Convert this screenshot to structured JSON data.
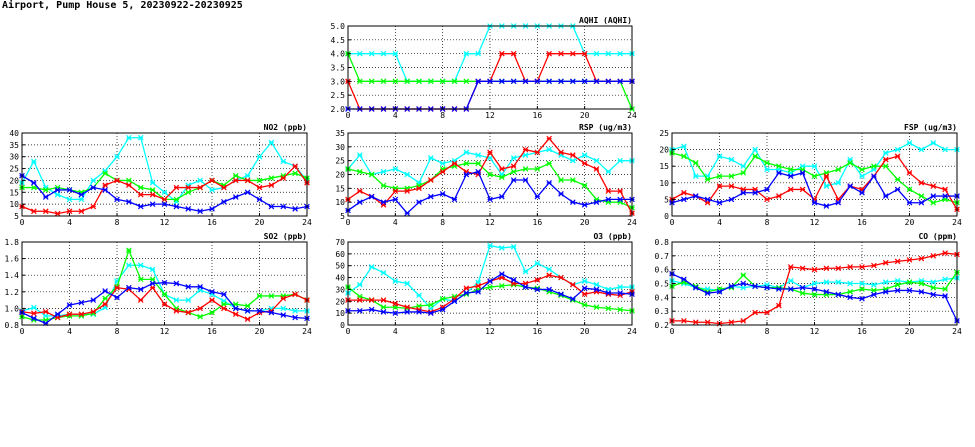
{
  "page": {
    "title": "Airport, Pump House 5, 20230922-20230925"
  },
  "chart_data": [
    {
      "id": "aqhi",
      "type": "line",
      "title": "AQHI (AQHI)",
      "xlim": [
        0,
        24
      ],
      "ylim": [
        2.0,
        5.0
      ],
      "xticks": [
        0,
        4,
        8,
        12,
        16,
        20,
        24
      ],
      "yticks": [
        2.0,
        2.5,
        3.0,
        3.5,
        4.0,
        4.5,
        5.0
      ],
      "ytick_format": "fixed1",
      "grid": true,
      "x": [
        0,
        1,
        2,
        3,
        4,
        5,
        6,
        7,
        8,
        9,
        10,
        11,
        12,
        13,
        14,
        15,
        16,
        17,
        18,
        19,
        20,
        21,
        22,
        23,
        24
      ],
      "series": [
        {
          "color": "#00ffff",
          "values": [
            4,
            4,
            4,
            4,
            4,
            3,
            3,
            3,
            3,
            3,
            4,
            4,
            5,
            5,
            5,
            5,
            5,
            5,
            5,
            5,
            4,
            4,
            4,
            4,
            4
          ]
        },
        {
          "color": "#00ff00",
          "values": [
            4,
            3,
            3,
            3,
            3,
            3,
            3,
            3,
            3,
            3,
            3,
            3,
            3,
            3,
            3,
            3,
            3,
            3,
            3,
            3,
            3,
            3,
            3,
            3,
            2
          ]
        },
        {
          "color": "#ff0000",
          "values": [
            3,
            2,
            2,
            2,
            2,
            2,
            2,
            2,
            2,
            2,
            2,
            3,
            3,
            4,
            4,
            3,
            3,
            4,
            4,
            4,
            4,
            3,
            3,
            3,
            3
          ]
        },
        {
          "color": "#0000ff",
          "values": [
            2,
            2,
            2,
            2,
            2,
            2,
            2,
            2,
            2,
            2,
            2,
            3,
            3,
            3,
            3,
            3,
            3,
            3,
            3,
            3,
            3,
            3,
            3,
            3,
            3
          ]
        }
      ]
    },
    {
      "id": "no2",
      "type": "line",
      "title": "NO2 (ppb)",
      "xlim": [
        0,
        24
      ],
      "ylim": [
        5,
        40
      ],
      "xticks": [
        0,
        4,
        8,
        12,
        16,
        20,
        24
      ],
      "yticks": [
        5,
        10,
        15,
        20,
        25,
        30,
        35,
        40
      ],
      "ytick_format": "int",
      "grid": true,
      "x": [
        0,
        1,
        2,
        3,
        4,
        5,
        6,
        7,
        8,
        9,
        10,
        11,
        12,
        13,
        14,
        15,
        16,
        17,
        18,
        19,
        20,
        21,
        22,
        23,
        24
      ],
      "series": [
        {
          "color": "#00ffff",
          "values": [
            19,
            28,
            17,
            14,
            12,
            12,
            20,
            24,
            30,
            38,
            38,
            19,
            15,
            11,
            18,
            20,
            16,
            17,
            20,
            22,
            30,
            36,
            28,
            26,
            20
          ]
        },
        {
          "color": "#00ff00",
          "values": [
            17,
            17,
            16,
            17,
            16,
            15,
            17,
            23,
            20,
            20,
            17,
            16,
            12,
            12,
            15,
            17,
            20,
            18,
            22,
            20,
            20,
            21,
            22,
            23,
            21
          ]
        },
        {
          "color": "#ff0000",
          "values": [
            9,
            7,
            7,
            6,
            7,
            7,
            9,
            18,
            20,
            18,
            14,
            14,
            12,
            17,
            17,
            17,
            20,
            17,
            20,
            20,
            17,
            18,
            21,
            26,
            19
          ]
        },
        {
          "color": "#0000ff",
          "values": [
            22,
            19,
            13,
            16,
            16,
            14,
            17,
            16,
            12,
            11,
            9,
            10,
            10,
            9,
            8,
            7,
            8,
            11,
            13,
            15,
            12,
            9,
            9,
            8,
            9
          ]
        }
      ]
    },
    {
      "id": "rsp",
      "type": "line",
      "title": "RSP (ug/m3)",
      "xlim": [
        0,
        24
      ],
      "ylim": [
        5,
        35
      ],
      "xticks": [
        0,
        4,
        8,
        12,
        16,
        20,
        24
      ],
      "yticks": [
        5,
        10,
        15,
        20,
        25,
        30,
        35
      ],
      "ytick_format": "int",
      "grid": true,
      "x": [
        0,
        1,
        2,
        3,
        4,
        5,
        6,
        7,
        8,
        9,
        10,
        11,
        12,
        13,
        14,
        15,
        16,
        17,
        18,
        19,
        20,
        21,
        22,
        23,
        24
      ],
      "series": [
        {
          "color": "#00ffff",
          "values": [
            22,
            27,
            20,
            21,
            22,
            20,
            17,
            26,
            24,
            25,
            28,
            27,
            26,
            20,
            26,
            27,
            28,
            29,
            27,
            25,
            27,
            25,
            21,
            25,
            25
          ]
        },
        {
          "color": "#00ff00",
          "values": [
            22,
            21,
            20,
            16,
            15,
            15,
            16,
            18,
            22,
            23,
            24,
            24,
            20,
            19,
            21,
            22,
            22,
            24,
            18,
            18,
            16,
            11,
            10,
            10,
            8
          ]
        },
        {
          "color": "#ff0000",
          "values": [
            11,
            14,
            12,
            9,
            14,
            14,
            15,
            18,
            21,
            24,
            21,
            20,
            28,
            22,
            23,
            29,
            28,
            33,
            28,
            27,
            24,
            22,
            14,
            14,
            6
          ]
        },
        {
          "color": "#0000ff",
          "values": [
            7,
            10,
            12,
            10,
            11,
            6,
            10,
            12,
            13,
            11,
            20,
            21,
            11,
            12,
            18,
            18,
            12,
            17,
            13,
            10,
            9,
            10,
            11,
            11,
            11
          ]
        }
      ]
    },
    {
      "id": "fsp",
      "type": "line",
      "title": "FSP (ug/m3)",
      "xlim": [
        0,
        24
      ],
      "ylim": [
        0,
        25
      ],
      "xticks": [
        0,
        4,
        8,
        12,
        16,
        20,
        24
      ],
      "yticks": [
        0,
        5,
        10,
        15,
        20,
        25
      ],
      "ytick_format": "int",
      "grid": true,
      "x": [
        0,
        1,
        2,
        3,
        4,
        5,
        6,
        7,
        8,
        9,
        10,
        11,
        12,
        13,
        14,
        15,
        16,
        17,
        18,
        19,
        20,
        21,
        22,
        23,
        24
      ],
      "series": [
        {
          "color": "#00ffff",
          "values": [
            20,
            21,
            12,
            12,
            18,
            17,
            15,
            20,
            14,
            14,
            13,
            15,
            15,
            9,
            10,
            17,
            12,
            14,
            19,
            20,
            22,
            20,
            22,
            20,
            20
          ]
        },
        {
          "color": "#00ff00",
          "values": [
            19,
            18,
            16,
            11,
            12,
            12,
            13,
            18,
            16,
            15,
            14,
            14,
            12,
            13,
            14,
            16,
            14,
            15,
            15,
            11,
            8,
            6,
            4,
            5,
            4
          ]
        },
        {
          "color": "#ff0000",
          "values": [
            5,
            7,
            6,
            4,
            9,
            9,
            8,
            8,
            5,
            6,
            8,
            8,
            5,
            12,
            5,
            9,
            8,
            12,
            17,
            18,
            13,
            10,
            9,
            8,
            2
          ]
        },
        {
          "color": "#0000ff",
          "values": [
            4,
            5,
            6,
            5,
            4,
            5,
            7,
            7,
            8,
            13,
            12,
            13,
            4,
            3,
            4,
            9,
            7,
            12,
            6,
            8,
            4,
            4,
            6,
            6,
            6
          ]
        }
      ]
    },
    {
      "id": "so2",
      "type": "line",
      "title": "SO2 (ppb)",
      "xlim": [
        0,
        24
      ],
      "ylim": [
        0.8,
        1.8
      ],
      "xticks": [
        0,
        4,
        8,
        12,
        16,
        20,
        24
      ],
      "yticks": [
        0.8,
        1.0,
        1.2,
        1.4,
        1.6,
        1.8
      ],
      "ytick_format": "fixed1",
      "grid": true,
      "x": [
        0,
        1,
        2,
        3,
        4,
        5,
        6,
        7,
        8,
        9,
        10,
        11,
        12,
        13,
        14,
        15,
        16,
        17,
        18,
        19,
        20,
        21,
        22,
        23,
        24
      ],
      "series": [
        {
          "color": "#00ffff",
          "values": [
            0.97,
            1.01,
            0.91,
            0.91,
            0.93,
            0.93,
            0.93,
            1.01,
            1.33,
            1.52,
            1.52,
            1.47,
            1.17,
            1.1,
            1.1,
            1.22,
            1.17,
            1.09,
            1.0,
            0.97,
            0.97,
            1.0,
            1.0,
            0.97,
            0.97
          ]
        },
        {
          "color": "#00ff00",
          "values": [
            0.9,
            0.86,
            0.86,
            0.89,
            0.91,
            0.91,
            0.94,
            1.12,
            1.26,
            1.7,
            1.35,
            1.35,
            1.17,
            1.0,
            0.95,
            0.9,
            0.95,
            1.05,
            1.05,
            1.03,
            1.15,
            1.15,
            1.15,
            1.17,
            1.1
          ]
        },
        {
          "color": "#ff0000",
          "values": [
            0.96,
            0.94,
            0.96,
            0.89,
            0.93,
            0.93,
            0.96,
            1.05,
            1.25,
            1.23,
            1.1,
            1.25,
            1.05,
            0.97,
            0.95,
            1.0,
            1.1,
            1.0,
            0.93,
            0.87,
            0.95,
            0.97,
            1.12,
            1.17,
            1.1
          ]
        },
        {
          "color": "#0000ff",
          "values": [
            0.95,
            0.88,
            0.82,
            0.93,
            1.04,
            1.07,
            1.1,
            1.21,
            1.13,
            1.25,
            1.23,
            1.3,
            1.31,
            1.3,
            1.26,
            1.26,
            1.2,
            1.17,
            1.0,
            0.97,
            0.97,
            0.95,
            0.92,
            0.89,
            0.88
          ]
        }
      ]
    },
    {
      "id": "o3",
      "type": "line",
      "title": "O3 (ppb)",
      "xlim": [
        0,
        24
      ],
      "ylim": [
        0,
        70
      ],
      "xticks": [
        0,
        4,
        8,
        12,
        16,
        20,
        24
      ],
      "yticks": [
        0,
        10,
        20,
        30,
        40,
        50,
        60,
        70
      ],
      "ytick_format": "int",
      "grid": true,
      "x": [
        0,
        1,
        2,
        3,
        4,
        5,
        6,
        7,
        8,
        9,
        10,
        11,
        12,
        13,
        14,
        15,
        16,
        17,
        18,
        19,
        20,
        21,
        22,
        23,
        24
      ],
      "series": [
        {
          "color": "#00ffff",
          "values": [
            27,
            34,
            49,
            44,
            37,
            35,
            25,
            14,
            22,
            20,
            27,
            36,
            67,
            65,
            66,
            45,
            52,
            47,
            40,
            34,
            37,
            34,
            30,
            32,
            32
          ]
        },
        {
          "color": "#00ff00",
          "values": [
            32,
            24,
            21,
            15,
            15,
            14,
            16,
            17,
            22,
            24,
            26,
            30,
            32,
            33,
            34,
            32,
            31,
            28,
            25,
            21,
            17,
            15,
            14,
            13,
            12
          ]
        },
        {
          "color": "#ff0000",
          "values": [
            21,
            21,
            21,
            21,
            18,
            15,
            13,
            11,
            15,
            22,
            31,
            33,
            37,
            40,
            35,
            35,
            38,
            42,
            40,
            34,
            26,
            28,
            26,
            25,
            28
          ]
        },
        {
          "color": "#0000ff",
          "values": [
            12,
            12,
            13,
            11,
            10,
            11,
            11,
            10,
            13,
            20,
            27,
            28,
            37,
            43,
            38,
            32,
            30,
            30,
            26,
            22,
            31,
            30,
            27,
            27,
            26
          ]
        }
      ]
    },
    {
      "id": "co",
      "type": "line",
      "title": "CO (ppm)",
      "xlim": [
        0,
        24
      ],
      "ylim": [
        0.2,
        0.8
      ],
      "xticks": [
        0,
        4,
        8,
        12,
        16,
        20,
        24
      ],
      "yticks": [
        0.2,
        0.3,
        0.4,
        0.5,
        0.6,
        0.7,
        0.8
      ],
      "ytick_format": "fixed1",
      "grid": true,
      "x": [
        0,
        1,
        2,
        3,
        4,
        5,
        6,
        7,
        8,
        9,
        10,
        11,
        12,
        13,
        14,
        15,
        16,
        17,
        18,
        19,
        20,
        21,
        22,
        23,
        24
      ],
      "series": [
        {
          "color": "#00ffff",
          "values": [
            0.52,
            0.5,
            0.47,
            0.46,
            0.45,
            0.48,
            0.47,
            0.48,
            0.49,
            0.47,
            0.52,
            0.47,
            0.5,
            0.51,
            0.51,
            0.5,
            0.5,
            0.49,
            0.51,
            0.52,
            0.51,
            0.52,
            0.51,
            0.53,
            0.54
          ]
        },
        {
          "color": "#00ff00",
          "values": [
            0.48,
            0.51,
            0.48,
            0.44,
            0.46,
            0.47,
            0.56,
            0.48,
            0.47,
            0.47,
            0.46,
            0.43,
            0.42,
            0.42,
            0.42,
            0.44,
            0.46,
            0.45,
            0.46,
            0.49,
            0.51,
            0.5,
            0.47,
            0.46,
            0.58
          ]
        },
        {
          "color": "#ff0000",
          "values": [
            0.23,
            0.23,
            0.22,
            0.22,
            0.21,
            0.22,
            0.23,
            0.29,
            0.29,
            0.34,
            0.62,
            0.61,
            0.6,
            0.61,
            0.61,
            0.62,
            0.62,
            0.63,
            0.65,
            0.66,
            0.67,
            0.68,
            0.7,
            0.72,
            0.71
          ]
        },
        {
          "color": "#0000ff",
          "values": [
            0.57,
            0.53,
            0.47,
            0.43,
            0.44,
            0.48,
            0.5,
            0.48,
            0.47,
            0.46,
            0.46,
            0.47,
            0.46,
            0.44,
            0.42,
            0.4,
            0.39,
            0.42,
            0.44,
            0.45,
            0.45,
            0.44,
            0.42,
            0.41,
            0.23
          ]
        }
      ]
    }
  ]
}
